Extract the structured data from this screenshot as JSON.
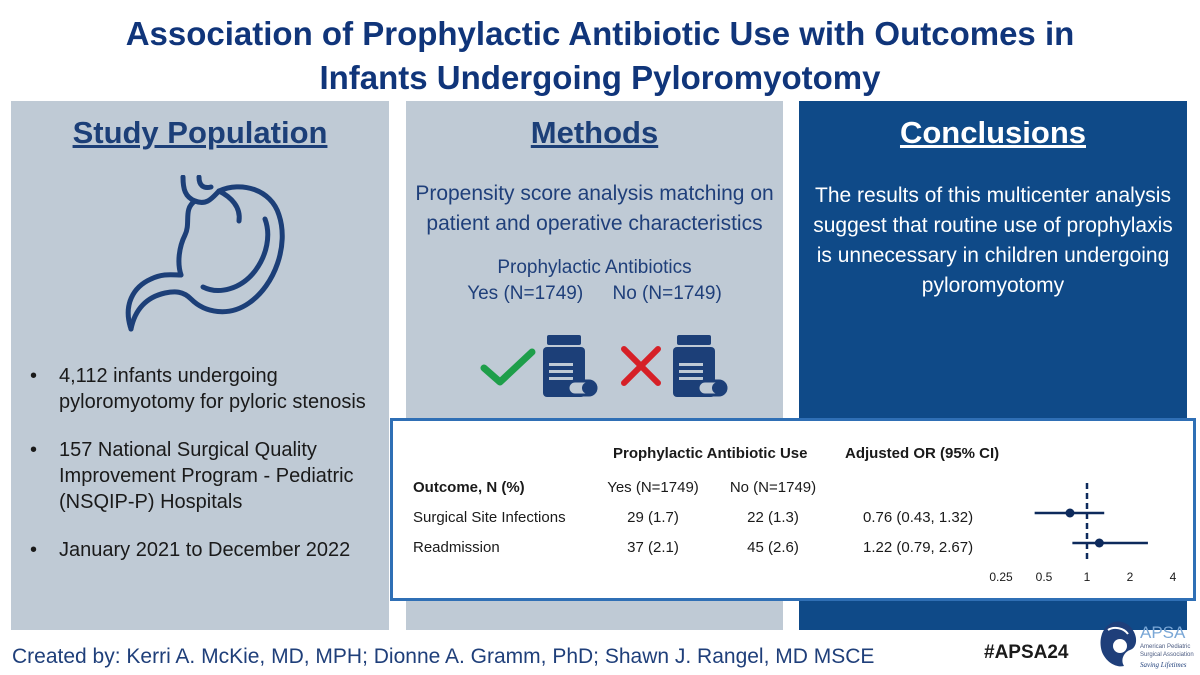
{
  "title": {
    "line1": "Association of Prophylactic Antibiotic Use with Outcomes in",
    "line2": "Infants Undergoing Pyloromyotomy"
  },
  "study_population": {
    "heading": "Study Population",
    "bullets": [
      "4,112 infants undergoing pyloromyotomy for pyloric stenosis",
      "157 National Surgical Quality Improvement Program - Pediatric (NSQIP-P) Hospitals",
      "January 2021 to December 2022"
    ]
  },
  "methods": {
    "heading": "Methods",
    "description": "Propensity score analysis matching on patient and operative characteristics",
    "prophylactic_title": "Prophylactic Antibiotics",
    "yes_group": "Yes (N=1749)",
    "no_group": "No (N=1749)"
  },
  "conclusions": {
    "heading": "Conclusions",
    "text": "The results of this multicenter analysis suggest that routine use of prophylaxis is unnecessary in children undergoing pyloromyotomy"
  },
  "results_table": {
    "header_use": "Prophylactic Antibiotic Use",
    "header_or": "Adjusted OR (95% CI)",
    "col_outcome": "Outcome, N (%)",
    "col_yes": "Yes (N=1749)",
    "col_no": "No (N=1749)",
    "rows": [
      {
        "outcome": "Surgical Site Infections",
        "yes": "29 (1.7)",
        "no": "22 (1.3)",
        "or": "0.76 (0.43, 1.32)"
      },
      {
        "outcome": "Readmission",
        "yes": "37 (2.1)",
        "no": "45 (2.6)",
        "or": "1.22 (0.79, 2.67)"
      }
    ]
  },
  "chart_data": {
    "type": "scatter",
    "x_scale": "log",
    "x_ticks": [
      "0.25",
      "0.5",
      "1",
      "2",
      "4"
    ],
    "x_tick_values": [
      0.25,
      0.5,
      1,
      2,
      4
    ],
    "xlim": [
      0.25,
      4
    ],
    "reference_line": 1,
    "points": [
      {
        "label": "Surgical Site Infections",
        "or": 0.76,
        "ci_low": 0.43,
        "ci_high": 1.32
      },
      {
        "label": "Readmission",
        "or": 1.22,
        "ci_low": 0.79,
        "ci_high": 2.67
      }
    ]
  },
  "footer": {
    "credits": "Created by: Kerri A. McKie, MD, MPH; Dionne A. Gramm, PhD; Shawn J. Rangel, MD MSCE",
    "hashtag": "#APSA24"
  },
  "logo": {
    "acronym": "APSA",
    "line1": "American Pediatric",
    "line2": "Surgical Association",
    "tagline": "Saving Lifetimes"
  },
  "colors": {
    "title": "#10357a",
    "panel_light": "#bfcad5",
    "panel_dark": "#0f4a88",
    "check": "#1e9e4a",
    "cross": "#d62027",
    "table_border": "#2f6fb5",
    "forest": "#0d2a5c"
  },
  "icons": {
    "stomach": "stomach-icon",
    "check": "check-icon",
    "cross": "cross-icon",
    "pill_bottle": "pill-bottle-icon"
  }
}
